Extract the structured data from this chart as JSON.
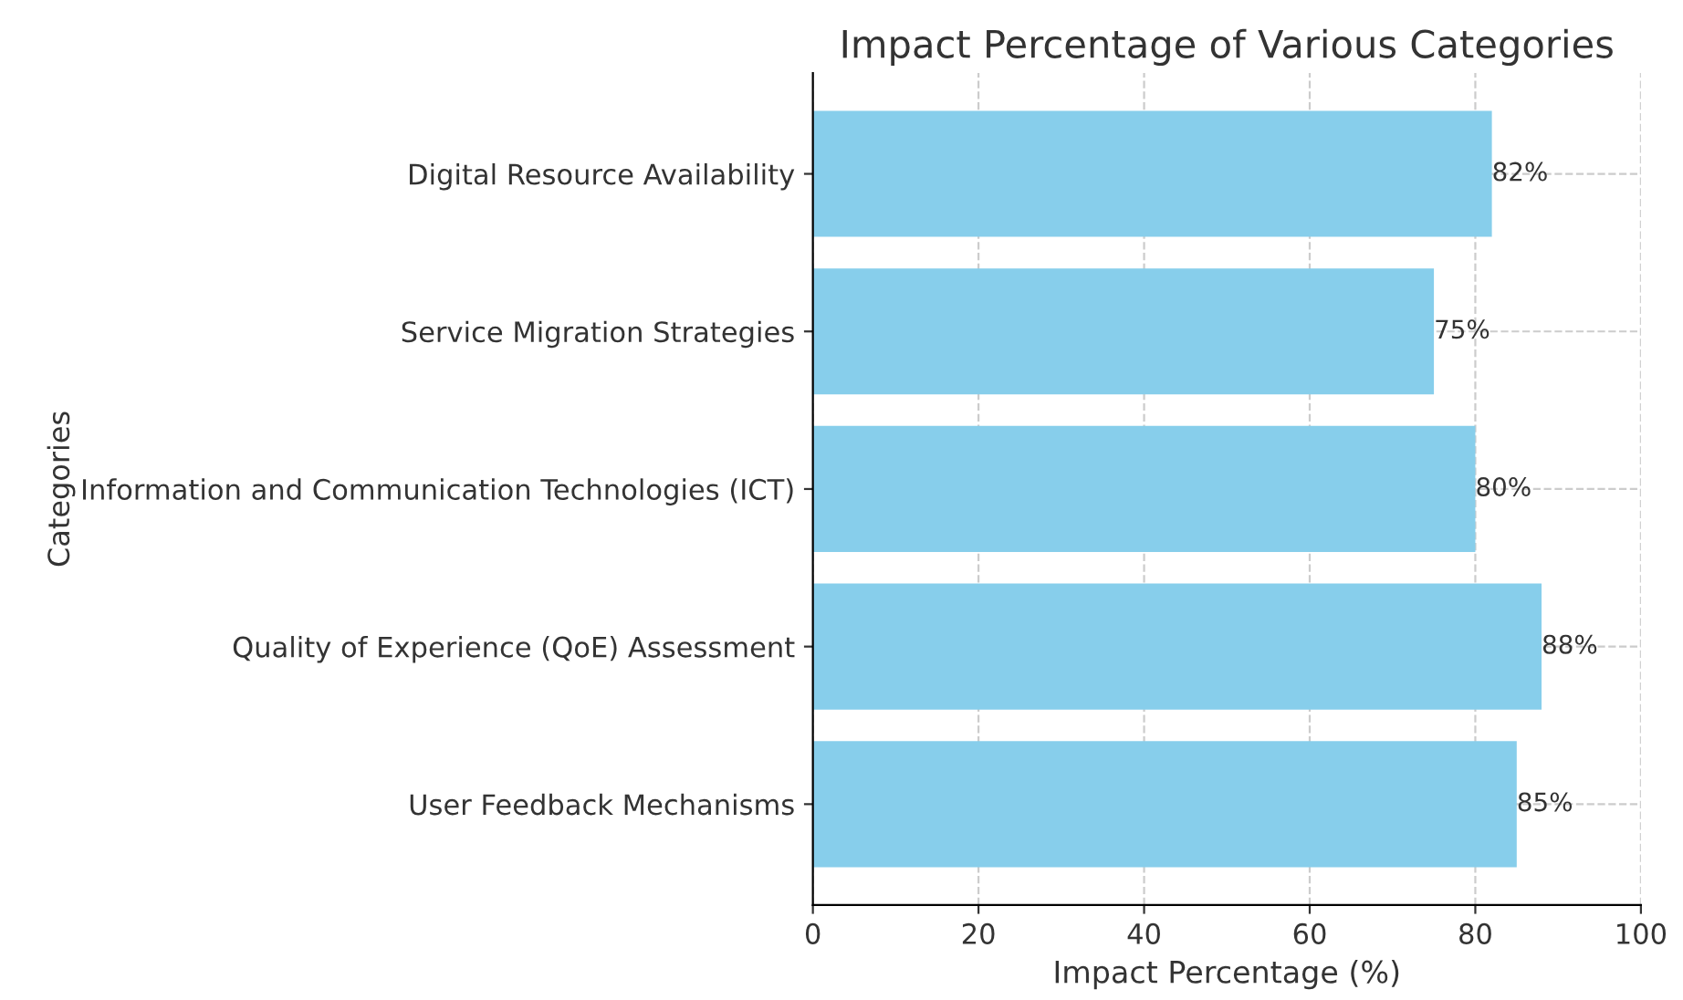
{
  "chart_data": {
    "type": "bar",
    "orientation": "horizontal",
    "title": "Impact Percentage of Various Categories",
    "xlabel": "Impact Percentage (%)",
    "ylabel": "Categories",
    "categories": [
      "Digital Resource Availability",
      "Service Migration Strategies",
      "Information and Communication Technologies (ICT)",
      "Quality of Experience (QoE) Assessment",
      "User Feedback Mechanisms"
    ],
    "values": [
      82,
      75,
      80,
      88,
      85
    ],
    "value_labels": [
      "82%",
      "75%",
      "80%",
      "88%",
      "85%"
    ],
    "color": "#87ceeb",
    "xlim": [
      0,
      100
    ],
    "xticks": [
      0,
      20,
      40,
      60,
      80,
      100
    ],
    "grid": true,
    "legend": false
  }
}
